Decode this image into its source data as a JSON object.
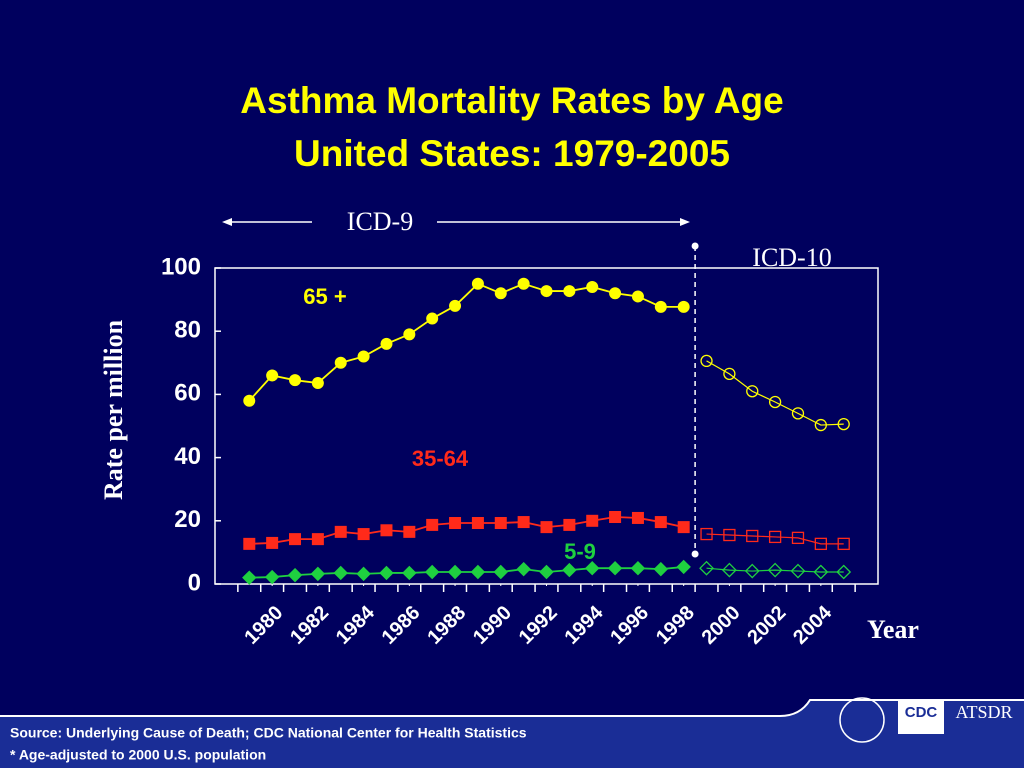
{
  "chart_data": {
    "type": "line",
    "title": [
      "Asthma Mortality Rates by Age",
      "United States: 1979-2005"
    ],
    "ylabel": "Rate per million",
    "xlabel": "Year",
    "periods": [
      {
        "label": "ICD-9",
        "marker": "filled",
        "x": [
          1979,
          1980,
          1981,
          1982,
          1983,
          1984,
          1985,
          1986,
          1987,
          1988,
          1989,
          1990,
          1991,
          1992,
          1993,
          1994,
          1995,
          1996,
          1997,
          1998
        ]
      },
      {
        "label": "ICD-10",
        "marker": "open",
        "x": [
          1999,
          2000,
          2001,
          2002,
          2003,
          2004,
          2005
        ]
      }
    ],
    "series": [
      {
        "name": "65 +",
        "color": "#ffff00",
        "shape": "circle",
        "values": [
          [
            58,
            66,
            64.5,
            63.6,
            70,
            72,
            76,
            79,
            84,
            88,
            95,
            92,
            95,
            92.7,
            92.7,
            94,
            92,
            91,
            87.7,
            87.7
          ],
          [
            70.6,
            66.5,
            61,
            57.6,
            54,
            50.3,
            50.6
          ]
        ]
      },
      {
        "name": "35-64",
        "color": "#ff2a1a",
        "shape": "square",
        "values": [
          [
            12.7,
            13,
            14.2,
            14.2,
            16.5,
            15.8,
            17,
            16.5,
            18.7,
            19.3,
            19.3,
            19.3,
            19.6,
            18,
            18.7,
            20,
            21.2,
            20.9,
            19.6,
            18
          ],
          [
            15.8,
            15.5,
            15.2,
            14.9,
            14.6,
            12.7,
            12.7
          ]
        ]
      },
      {
        "name": "5-9",
        "color": "#1fd040",
        "shape": "diamond",
        "values": [
          [
            2,
            2.2,
            2.8,
            3.2,
            3.5,
            3.2,
            3.5,
            3.5,
            3.8,
            3.8,
            3.8,
            3.8,
            4.7,
            3.8,
            4.4,
            5,
            5,
            5,
            4.7,
            5.4
          ],
          [
            5,
            4.4,
            4.1,
            4.4,
            4.1,
            3.8,
            3.8
          ]
        ]
      }
    ],
    "xlim": [
      1977.5,
      2006.5
    ],
    "xticks": [
      1980,
      1982,
      1984,
      1986,
      1988,
      1990,
      1992,
      1994,
      1996,
      1998,
      2000,
      2002,
      2004
    ],
    "ylim": [
      0,
      100
    ],
    "yticks": [
      0,
      20,
      40,
      60,
      80,
      100
    ]
  },
  "footer": {
    "source": "Source: Underlying Cause of Death; CDC National Center for Health Statistics",
    "note": "* Age-adjusted to 2000 U.S. population",
    "logos": [
      "CDC",
      "ATSDR"
    ]
  }
}
